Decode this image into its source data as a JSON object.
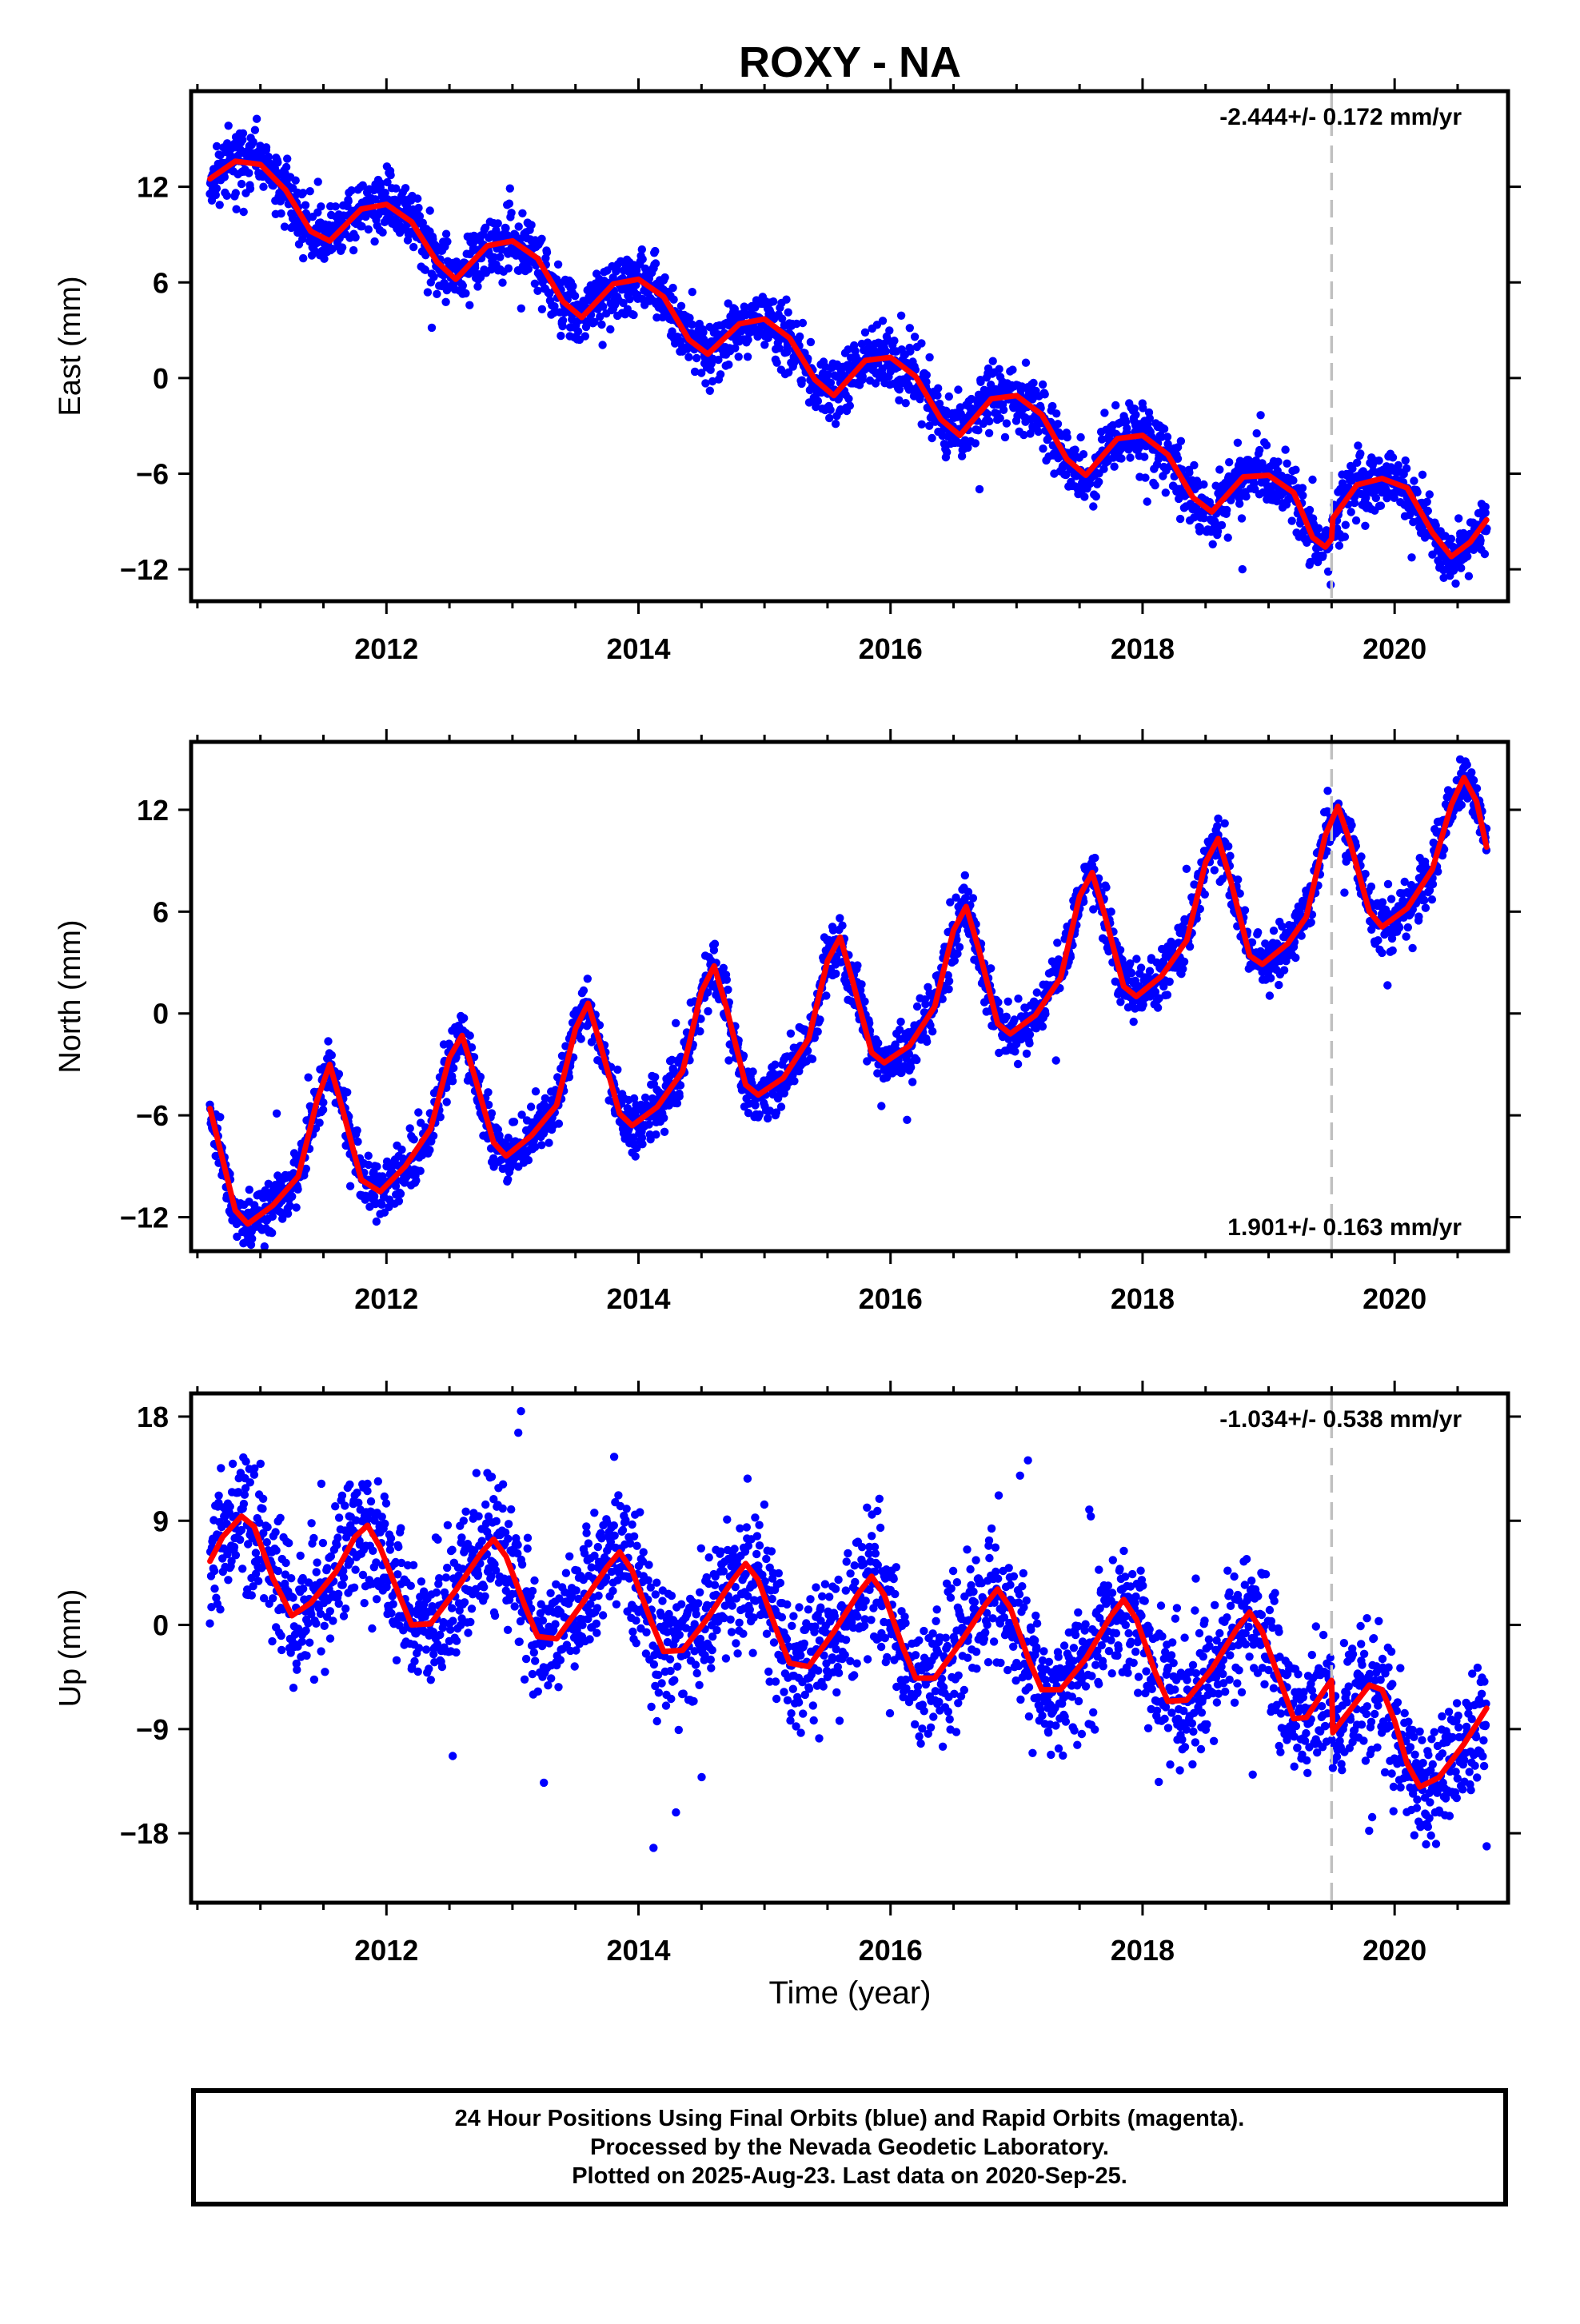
{
  "title": "ROXY - NA",
  "xlabel": "Time (year)",
  "footer": [
    "24 Hour Positions Using Final Orbits (blue) and Rapid Orbits (magenta).",
    "Processed by the Nevada Geodetic Laboratory.",
    "Plotted on 2025-Aug-23. Last data on 2020-Sep-25."
  ],
  "colors": {
    "data": "#0000ff",
    "model": "#ff0000",
    "break": "#c0c0c0"
  },
  "chart_data": [
    {
      "type": "scatter",
      "ylabel": "East (mm)",
      "rate": "-2.444+/- 0.172 mm/yr",
      "rate_position": "top-right",
      "xlim": [
        2010.45,
        2020.9
      ],
      "ylim": [
        -14,
        18
      ],
      "yticks": [
        12,
        6,
        0,
        -6,
        -12
      ],
      "xticks": [
        2012,
        2014,
        2016,
        2018,
        2020
      ],
      "break_x": 2019.5,
      "trend": {
        "t0": 2010.6,
        "y0": 12.6,
        "rate": -2.444,
        "step": 0.4
      },
      "model": [
        [
          2010.6,
          12.5
        ],
        [
          2010.8,
          13.6
        ],
        [
          2011.0,
          13.4
        ],
        [
          2011.2,
          11.8
        ],
        [
          2011.4,
          9.2
        ],
        [
          2011.55,
          8.6
        ],
        [
          2011.8,
          10.6
        ],
        [
          2012.0,
          10.9
        ],
        [
          2012.2,
          9.8
        ],
        [
          2012.4,
          7.3
        ],
        [
          2012.55,
          6.2
        ],
        [
          2012.8,
          8.3
        ],
        [
          2013.0,
          8.6
        ],
        [
          2013.2,
          7.5
        ],
        [
          2013.4,
          4.8
        ],
        [
          2013.55,
          3.8
        ],
        [
          2013.8,
          5.9
        ],
        [
          2014.0,
          6.2
        ],
        [
          2014.2,
          5.1
        ],
        [
          2014.4,
          2.4
        ],
        [
          2014.55,
          1.5
        ],
        [
          2014.8,
          3.4
        ],
        [
          2015.0,
          3.7
        ],
        [
          2015.2,
          2.5
        ],
        [
          2015.4,
          -0.1
        ],
        [
          2015.55,
          -1.1
        ],
        [
          2015.8,
          1.1
        ],
        [
          2016.0,
          1.3
        ],
        [
          2016.2,
          0.1
        ],
        [
          2016.4,
          -2.6
        ],
        [
          2016.55,
          -3.6
        ],
        [
          2016.8,
          -1.3
        ],
        [
          2017.0,
          -1.1
        ],
        [
          2017.2,
          -2.3
        ],
        [
          2017.4,
          -5.1
        ],
        [
          2017.55,
          -6.1
        ],
        [
          2017.8,
          -3.8
        ],
        [
          2018.0,
          -3.6
        ],
        [
          2018.2,
          -4.8
        ],
        [
          2018.4,
          -7.5
        ],
        [
          2018.55,
          -8.4
        ],
        [
          2018.8,
          -6.2
        ],
        [
          2019.0,
          -6.1
        ],
        [
          2019.2,
          -7.2
        ],
        [
          2019.35,
          -10.0
        ],
        [
          2019.45,
          -10.6
        ],
        [
          2019.5,
          -10.1
        ],
        [
          2019.51,
          -8.8
        ],
        [
          2019.7,
          -6.7
        ],
        [
          2019.9,
          -6.3
        ],
        [
          2020.1,
          -6.9
        ],
        [
          2020.3,
          -9.7
        ],
        [
          2020.45,
          -11.2
        ],
        [
          2020.6,
          -10.3
        ],
        [
          2020.73,
          -8.9
        ]
      ],
      "noise": 1.3,
      "seed": 11
    },
    {
      "type": "scatter",
      "ylabel": "North (mm)",
      "rate": "1.901+/- 0.163 mm/yr",
      "rate_position": "bottom-right",
      "xlim": [
        2010.45,
        2020.9
      ],
      "ylim": [
        -14,
        16
      ],
      "yticks": [
        12,
        6,
        0,
        -6,
        -12
      ],
      "xticks": [
        2012,
        2014,
        2016,
        2018,
        2020
      ],
      "break_x": 2019.5,
      "model": [
        [
          2010.6,
          -5.6
        ],
        [
          2010.7,
          -8.6
        ],
        [
          2010.8,
          -11.6
        ],
        [
          2010.9,
          -12.4
        ],
        [
          2011.1,
          -11.3
        ],
        [
          2011.3,
          -9.6
        ],
        [
          2011.45,
          -5.1
        ],
        [
          2011.55,
          -3.0
        ],
        [
          2011.65,
          -5.6
        ],
        [
          2011.8,
          -9.8
        ],
        [
          2011.95,
          -10.5
        ],
        [
          2012.15,
          -9.0
        ],
        [
          2012.35,
          -6.8
        ],
        [
          2012.5,
          -2.6
        ],
        [
          2012.6,
          -1.3
        ],
        [
          2012.7,
          -3.7
        ],
        [
          2012.85,
          -7.6
        ],
        [
          2012.95,
          -8.4
        ],
        [
          2013.15,
          -7.2
        ],
        [
          2013.35,
          -5.4
        ],
        [
          2013.5,
          -0.9
        ],
        [
          2013.6,
          0.6
        ],
        [
          2013.7,
          -1.9
        ],
        [
          2013.85,
          -5.9
        ],
        [
          2013.95,
          -6.6
        ],
        [
          2014.15,
          -5.5
        ],
        [
          2014.35,
          -3.4
        ],
        [
          2014.5,
          1.3
        ],
        [
          2014.6,
          2.8
        ],
        [
          2014.7,
          0.3
        ],
        [
          2014.85,
          -4.2
        ],
        [
          2014.95,
          -4.8
        ],
        [
          2015.15,
          -3.8
        ],
        [
          2015.35,
          -1.5
        ],
        [
          2015.5,
          3.1
        ],
        [
          2015.6,
          4.5
        ],
        [
          2015.7,
          1.9
        ],
        [
          2015.85,
          -2.3
        ],
        [
          2015.95,
          -2.9
        ],
        [
          2016.15,
          -1.9
        ],
        [
          2016.35,
          0.4
        ],
        [
          2016.5,
          4.9
        ],
        [
          2016.6,
          6.3
        ],
        [
          2016.7,
          3.8
        ],
        [
          2016.85,
          -0.6
        ],
        [
          2016.95,
          -1.2
        ],
        [
          2017.15,
          -0.1
        ],
        [
          2017.35,
          2.1
        ],
        [
          2017.5,
          6.9
        ],
        [
          2017.6,
          8.3
        ],
        [
          2017.7,
          5.8
        ],
        [
          2017.85,
          1.6
        ],
        [
          2017.95,
          1.0
        ],
        [
          2018.15,
          2.2
        ],
        [
          2018.35,
          4.3
        ],
        [
          2018.5,
          8.9
        ],
        [
          2018.6,
          10.3
        ],
        [
          2018.7,
          7.8
        ],
        [
          2018.85,
          3.4
        ],
        [
          2018.95,
          2.9
        ],
        [
          2019.15,
          4.1
        ],
        [
          2019.3,
          5.7
        ],
        [
          2019.45,
          10.5
        ],
        [
          2019.55,
          12.2
        ],
        [
          2019.65,
          10.0
        ],
        [
          2019.8,
          6.0
        ],
        [
          2019.9,
          5.1
        ],
        [
          2020.1,
          6.2
        ],
        [
          2020.3,
          8.5
        ],
        [
          2020.45,
          12.3
        ],
        [
          2020.55,
          13.9
        ],
        [
          2020.65,
          12.5
        ],
        [
          2020.73,
          9.8
        ]
      ],
      "noise": 1.1,
      "seed": 23
    },
    {
      "type": "scatter",
      "ylabel": "Up (mm)",
      "rate": "-1.034+/- 0.538 mm/yr",
      "rate_position": "top-right",
      "xlim": [
        2010.45,
        2020.9
      ],
      "ylim": [
        -24,
        20
      ],
      "yticks": [
        18,
        9,
        0,
        -9,
        -18
      ],
      "xticks": [
        2012,
        2014,
        2016,
        2018,
        2020
      ],
      "break_x": 2019.5,
      "model": [
        [
          2010.6,
          5.5
        ],
        [
          2010.7,
          7.6
        ],
        [
          2010.85,
          9.4
        ],
        [
          2010.95,
          8.5
        ],
        [
          2011.1,
          4.0
        ],
        [
          2011.25,
          0.8
        ],
        [
          2011.4,
          1.9
        ],
        [
          2011.6,
          4.6
        ],
        [
          2011.75,
          7.6
        ],
        [
          2011.85,
          8.6
        ],
        [
          2011.95,
          6.7
        ],
        [
          2012.1,
          2.6
        ],
        [
          2012.2,
          0.0
        ],
        [
          2012.35,
          0.1
        ],
        [
          2012.55,
          3.0
        ],
        [
          2012.75,
          6.2
        ],
        [
          2012.85,
          7.4
        ],
        [
          2012.95,
          5.9
        ],
        [
          2013.1,
          1.6
        ],
        [
          2013.2,
          -1.0
        ],
        [
          2013.35,
          -1.2
        ],
        [
          2013.55,
          1.8
        ],
        [
          2013.75,
          5.0
        ],
        [
          2013.85,
          6.3
        ],
        [
          2013.95,
          4.7
        ],
        [
          2014.1,
          0.3
        ],
        [
          2014.2,
          -2.3
        ],
        [
          2014.35,
          -2.2
        ],
        [
          2014.55,
          0.6
        ],
        [
          2014.75,
          3.9
        ],
        [
          2014.85,
          5.3
        ],
        [
          2014.95,
          3.9
        ],
        [
          2015.1,
          -0.6
        ],
        [
          2015.2,
          -3.3
        ],
        [
          2015.35,
          -3.6
        ],
        [
          2015.55,
          -0.6
        ],
        [
          2015.75,
          2.8
        ],
        [
          2015.85,
          4.2
        ],
        [
          2015.95,
          2.6
        ],
        [
          2016.1,
          -2.0
        ],
        [
          2016.2,
          -4.6
        ],
        [
          2016.35,
          -4.6
        ],
        [
          2016.55,
          -1.6
        ],
        [
          2016.75,
          1.7
        ],
        [
          2016.85,
          3.1
        ],
        [
          2016.95,
          1.5
        ],
        [
          2017.1,
          -3.1
        ],
        [
          2017.2,
          -5.6
        ],
        [
          2017.35,
          -5.6
        ],
        [
          2017.55,
          -2.9
        ],
        [
          2017.75,
          0.8
        ],
        [
          2017.85,
          2.2
        ],
        [
          2017.95,
          0.5
        ],
        [
          2018.1,
          -4.1
        ],
        [
          2018.2,
          -6.6
        ],
        [
          2018.35,
          -6.5
        ],
        [
          2018.55,
          -3.8
        ],
        [
          2018.75,
          -0.3
        ],
        [
          2018.85,
          1.1
        ],
        [
          2018.95,
          -0.6
        ],
        [
          2019.1,
          -5.1
        ],
        [
          2019.2,
          -8.1
        ],
        [
          2019.3,
          -8.0
        ],
        [
          2019.45,
          -5.5
        ],
        [
          2019.5,
          -4.8
        ],
        [
          2019.51,
          -9.3
        ],
        [
          2019.65,
          -7.3
        ],
        [
          2019.8,
          -5.2
        ],
        [
          2019.9,
          -5.6
        ],
        [
          2020.0,
          -8.3
        ],
        [
          2020.1,
          -12.0
        ],
        [
          2020.2,
          -14.0
        ],
        [
          2020.35,
          -13.2
        ],
        [
          2020.55,
          -10.3
        ],
        [
          2020.73,
          -7.2
        ]
      ],
      "noise": 3.8,
      "seed": 37
    }
  ]
}
